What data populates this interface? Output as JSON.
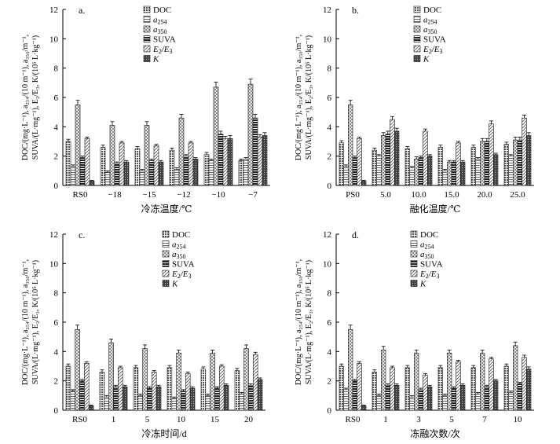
{
  "chart_data": [
    {
      "type": "bar",
      "panel_label": "a.",
      "categories": [
        "RS0",
        "−18",
        "−15",
        "−12",
        "−10",
        "−7"
      ],
      "xlabel": "冷冻温度/℃",
      "ylabel_line1": "DOC/(mg·L⁻¹), a₂₅₄/(10 m⁻¹), a₃₅₀/m⁻¹,",
      "ylabel_line2": "SUVA/(L·mg⁻¹), E₂/E₃, K/(10⁵ L·kg⁻¹)",
      "ylim": [
        0,
        12
      ],
      "yticks": [
        "0",
        "2",
        "4",
        "6",
        "8",
        "10",
        "12"
      ],
      "series": [
        {
          "name": "DOC",
          "values": [
            3.0,
            2.6,
            2.5,
            2.4,
            2.1,
            1.7
          ],
          "errors": [
            0.15,
            0.15,
            0.15,
            0.15,
            0.15,
            0.1
          ]
        },
        {
          "name": "a254",
          "values": [
            1.3,
            0.9,
            1.0,
            1.1,
            1.7,
            1.8
          ],
          "errors": [
            0.1,
            0.1,
            0.1,
            0.1,
            0.1,
            0.1
          ]
        },
        {
          "name": "a350",
          "values": [
            5.5,
            4.1,
            4.1,
            4.6,
            6.7,
            6.9
          ],
          "errors": [
            0.3,
            0.25,
            0.25,
            0.25,
            0.35,
            0.35
          ]
        },
        {
          "name": "SUVA",
          "values": [
            1.9,
            1.5,
            1.7,
            2.0,
            3.5,
            4.6
          ],
          "errors": [
            0.1,
            0.1,
            0.1,
            0.1,
            0.2,
            0.25
          ]
        },
        {
          "name": "E2/E3",
          "values": [
            3.2,
            2.9,
            2.7,
            2.9,
            3.2,
            3.3
          ],
          "errors": [
            0.1,
            0.1,
            0.1,
            0.1,
            0.15,
            0.15
          ]
        },
        {
          "name": "K",
          "values": [
            0.3,
            1.6,
            1.6,
            1.8,
            3.2,
            3.4
          ],
          "errors": [
            0.05,
            0.1,
            0.1,
            0.1,
            0.2,
            0.2
          ]
        }
      ]
    },
    {
      "type": "bar",
      "panel_label": "b.",
      "categories": [
        "PS0",
        "5.0",
        "10.0",
        "15.0",
        "20.0",
        "25.0"
      ],
      "xlabel": "融化温度/℃",
      "ylabel_line1": "DOC/(mg·L⁻¹), a₂₅₄/(10 m⁻¹), a₃₅₀/m⁻¹,",
      "ylabel_line2": "SUVA/(L·mg⁻¹), E₂/E₃, K/(10⁵ L·kg⁻¹)",
      "ylim": [
        0,
        12
      ],
      "yticks": [
        "0",
        "2",
        "4",
        "6",
        "8",
        "10",
        "12"
      ],
      "series": [
        {
          "name": "DOC",
          "values": [
            2.9,
            2.4,
            2.5,
            2.6,
            2.6,
            2.8
          ],
          "errors": [
            0.15,
            0.15,
            0.15,
            0.15,
            0.15,
            0.15
          ]
        },
        {
          "name": "a254",
          "values": [
            1.3,
            2.0,
            1.2,
            1.0,
            1.8,
            2.0
          ],
          "errors": [
            0.1,
            0.1,
            0.1,
            0.1,
            0.1,
            0.1
          ]
        },
        {
          "name": "a350",
          "values": [
            5.5,
            3.4,
            1.8,
            1.6,
            3.0,
            3.1
          ],
          "errors": [
            0.3,
            0.2,
            0.15,
            0.1,
            0.2,
            0.2
          ]
        },
        {
          "name": "SUVA",
          "values": [
            1.9,
            3.5,
            1.9,
            1.6,
            3.0,
            3.1
          ],
          "errors": [
            0.1,
            0.2,
            0.1,
            0.1,
            0.2,
            0.2
          ]
        },
        {
          "name": "E2/E3",
          "values": [
            3.2,
            4.5,
            3.7,
            2.9,
            4.2,
            4.6
          ],
          "errors": [
            0.1,
            0.2,
            0.15,
            0.1,
            0.2,
            0.2
          ]
        },
        {
          "name": "K",
          "values": [
            0.3,
            3.7,
            2.0,
            1.6,
            2.1,
            3.4
          ],
          "errors": [
            0.05,
            0.2,
            0.1,
            0.1,
            0.1,
            0.2
          ]
        }
      ]
    },
    {
      "type": "bar",
      "panel_label": "c.",
      "categories": [
        "RS0",
        "1",
        "5",
        "10",
        "15",
        "20"
      ],
      "xlabel": "冷冻时间/d",
      "ylabel_line1": "DOC/(mg·L⁻¹), a₂₅₄/(10 m⁻¹), a₃₅₀/m⁻¹,",
      "ylabel_line2": "SUVA/(L·mg⁻¹), E₂/E₃, K/(10⁵ L·kg⁻¹)",
      "ylim": [
        0,
        12
      ],
      "yticks": [
        "0",
        "2",
        "4",
        "6",
        "8",
        "10",
        "12"
      ],
      "series": [
        {
          "name": "DOC",
          "values": [
            3.0,
            2.6,
            2.9,
            2.9,
            2.8,
            2.7
          ],
          "errors": [
            0.15,
            0.15,
            0.15,
            0.15,
            0.15,
            0.15
          ]
        },
        {
          "name": "a254",
          "values": [
            1.3,
            0.9,
            1.0,
            0.8,
            1.0,
            1.1
          ],
          "errors": [
            0.1,
            0.1,
            0.1,
            0.1,
            0.1,
            0.1
          ]
        },
        {
          "name": "a350",
          "values": [
            5.5,
            4.6,
            4.2,
            3.9,
            3.9,
            4.2
          ],
          "errors": [
            0.3,
            0.25,
            0.25,
            0.2,
            0.2,
            0.25
          ]
        },
        {
          "name": "SUVA",
          "values": [
            2.0,
            1.6,
            1.5,
            1.3,
            1.5,
            1.7
          ],
          "errors": [
            0.1,
            0.1,
            0.1,
            0.1,
            0.1,
            0.1
          ]
        },
        {
          "name": "E2/E3",
          "values": [
            3.2,
            2.9,
            2.6,
            2.5,
            3.0,
            3.8
          ],
          "errors": [
            0.1,
            0.1,
            0.1,
            0.1,
            0.1,
            0.15
          ]
        },
        {
          "name": "K",
          "values": [
            0.3,
            1.6,
            1.6,
            1.5,
            1.7,
            2.1
          ],
          "errors": [
            0.05,
            0.1,
            0.1,
            0.1,
            0.1,
            0.1
          ]
        }
      ]
    },
    {
      "type": "bar",
      "panel_label": "d.",
      "categories": [
        "RS0",
        "1",
        "3",
        "5",
        "7",
        "10"
      ],
      "xlabel": "冻融次数/次",
      "ylabel_line1": "DOC/(mg·L⁻¹), a₂₅₄/(10 m⁻¹), a₃₅₀/m⁻¹,",
      "ylabel_line2": "SUVA/(L·mg⁻¹), E₂/E₃, K/(10⁵ L·kg⁻¹)",
      "ylim": [
        0,
        12
      ],
      "yticks": [
        "0",
        "2",
        "4",
        "6",
        "8",
        "10",
        "12"
      ],
      "series": [
        {
          "name": "DOC",
          "values": [
            3.0,
            2.6,
            2.9,
            2.9,
            2.9,
            3.0
          ],
          "errors": [
            0.15,
            0.15,
            0.15,
            0.15,
            0.15,
            0.15
          ]
        },
        {
          "name": "a254",
          "values": [
            1.4,
            1.0,
            0.9,
            1.0,
            1.1,
            1.2
          ],
          "errors": [
            0.1,
            0.1,
            0.1,
            0.1,
            0.1,
            0.1
          ]
        },
        {
          "name": "a350",
          "values": [
            5.5,
            4.1,
            3.9,
            3.9,
            3.9,
            4.4
          ],
          "errors": [
            0.3,
            0.25,
            0.2,
            0.2,
            0.2,
            0.25
          ]
        },
        {
          "name": "SUVA",
          "values": [
            2.0,
            1.7,
            1.4,
            1.5,
            1.6,
            1.8
          ],
          "errors": [
            0.1,
            0.1,
            0.1,
            0.1,
            0.1,
            0.1
          ]
        },
        {
          "name": "E2/E3",
          "values": [
            3.2,
            2.9,
            2.4,
            3.3,
            3.5,
            3.6
          ],
          "errors": [
            0.1,
            0.1,
            0.1,
            0.1,
            0.1,
            0.15
          ]
        },
        {
          "name": "K",
          "values": [
            0.3,
            1.7,
            1.6,
            1.7,
            2.0,
            2.8
          ],
          "errors": [
            0.05,
            0.1,
            0.1,
            0.1,
            0.1,
            0.15
          ]
        }
      ]
    }
  ],
  "legend": {
    "items": [
      {
        "key": "DOC",
        "base": "DOC",
        "sub": ""
      },
      {
        "key": "a254",
        "base": "a",
        "sub": "254"
      },
      {
        "key": "a350",
        "base": "a",
        "sub": "350"
      },
      {
        "key": "SUVA",
        "base": "SUVA",
        "sub": ""
      },
      {
        "key": "E2/E3",
        "base": "E",
        "sub": "2",
        "base2": "/E",
        "sub2": "3"
      },
      {
        "key": "K",
        "base": "K",
        "sub": ""
      }
    ]
  },
  "colors": {
    "DOC": "#bbbbbb",
    "a254": "#d6d6d6",
    "a350": "#eaeaea",
    "SUVA": "#333333",
    "E2/E3": "#c8c8c8",
    "K": "#6e6e6e"
  }
}
